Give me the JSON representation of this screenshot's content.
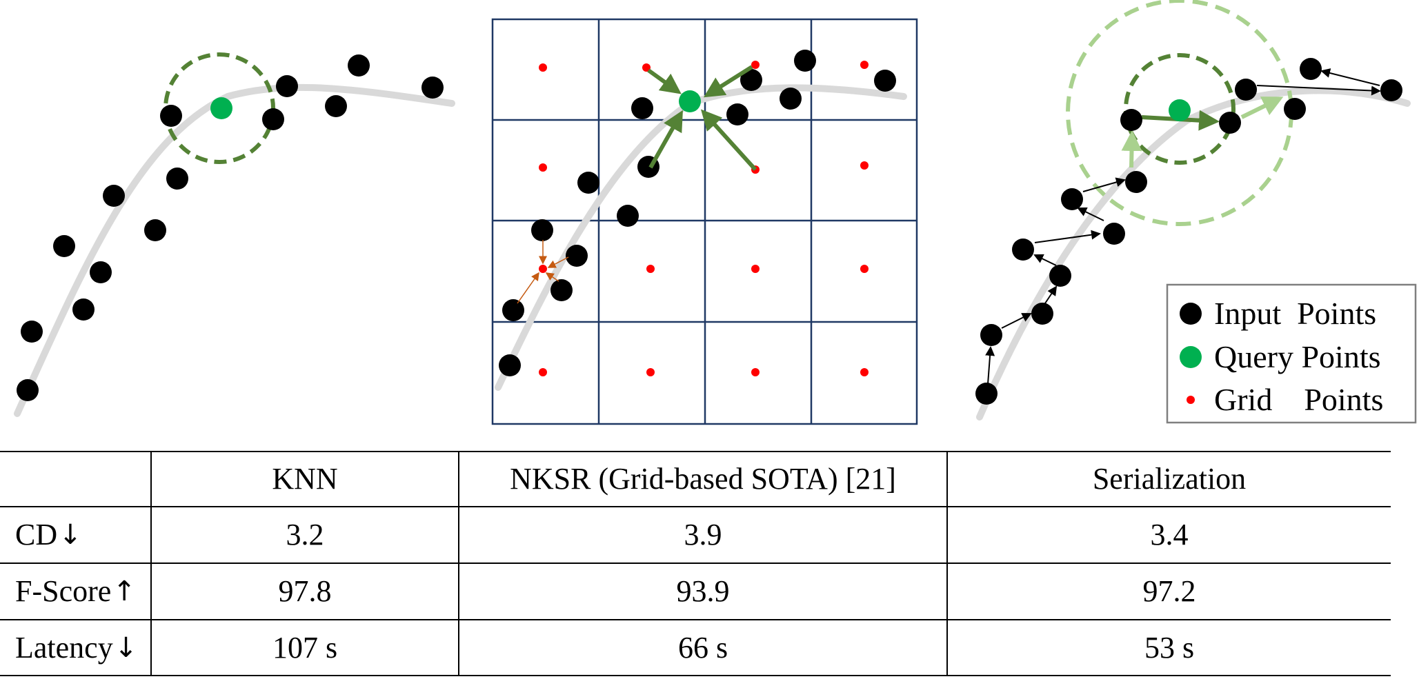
{
  "legend": {
    "items": [
      {
        "label": "Input  Points",
        "color": "#000000"
      },
      {
        "label": "Query Points",
        "color": "#00b050"
      },
      {
        "label": "Grid    Points",
        "color": "#ff0000"
      }
    ]
  },
  "colors": {
    "input_point": "#000000",
    "query_point": "#00b050",
    "grid_point": "#ff0000",
    "curve": "#d9d9d9",
    "knn_arrow": "#548235",
    "serial_ring_outer": "#a9d18e",
    "grid_line": "#1f3864",
    "local_arrow": "#c55a11"
  },
  "table": {
    "headers": [
      "",
      "KNN",
      "NKSR (Grid-based SOTA) [21]",
      "Serialization"
    ],
    "rows": [
      {
        "label": "CD",
        "arrow": "↓",
        "values": [
          "3.2",
          "3.9",
          "3.4"
        ]
      },
      {
        "label": "F-Score",
        "arrow": "↑",
        "values": [
          "97.8",
          "93.9",
          "97.2"
        ]
      },
      {
        "label": "Latency",
        "arrow": "↓",
        "values": [
          "107 s",
          "66 s",
          "53 s"
        ]
      }
    ]
  }
}
